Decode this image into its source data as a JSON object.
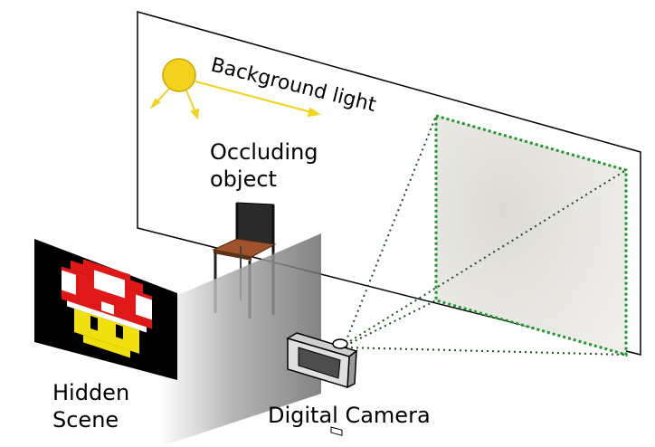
{
  "labels": {
    "background_light": "Background light",
    "occluding_line1": "Occluding",
    "occluding_line2": "object",
    "hidden_line1": "Hidden",
    "hidden_line2": "Scene",
    "camera": "Digital Camera"
  },
  "colors": {
    "light": "#f2d21c",
    "light_stroke": "#c9a800",
    "fov_dotted_green": "#1a9a2a",
    "fov_dotted_dark": "#1e4d1e",
    "chair_seat": "#a0522d",
    "chair_back": "#2a2a2a",
    "mushroom_red": "#e01818",
    "mushroom_yellow": "#f0e010",
    "scene_bg": "#000000"
  },
  "icons": {
    "light": "sun-bulb-icon",
    "chair": "chair-icon",
    "camera": "camera-icon",
    "mushroom": "pixel-mushroom-icon"
  }
}
